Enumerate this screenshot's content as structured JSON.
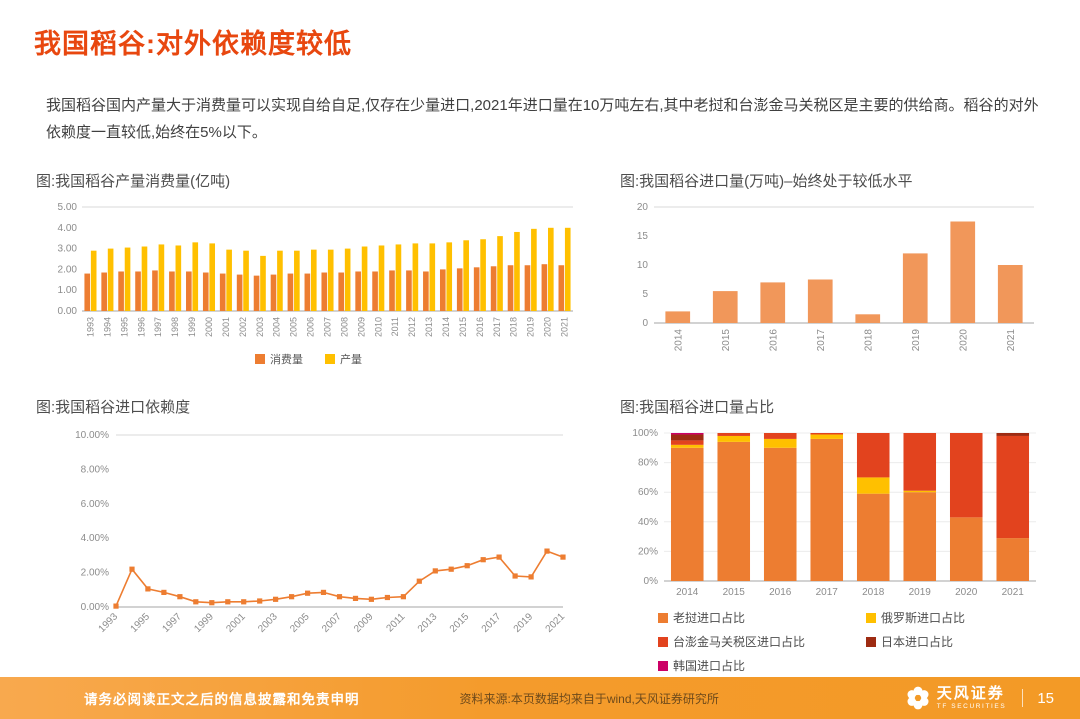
{
  "page": {
    "title": "我国稻谷:对外依赖度较低",
    "paragraph": "我国稻谷国内产量大于消费量可以实现自给自足,仅存在少量进口,2021年进口量在10万吨左右,其中老挝和台澎金马关税区是主要的供给商。稻谷的对外依赖度一直较低,始终在5%以下。",
    "page_number": "15"
  },
  "footer": {
    "disclaimer": "请务必阅读正文之后的信息披露和免责申明",
    "source": "资料来源:本页数据均来自于wind,天风证券研究所",
    "brand": "天风证券",
    "brand_en": "TF SECURITIES"
  },
  "colors": {
    "accent": "#E8470F",
    "footer_orange": "#F39A26",
    "consumption_orange": "#ED7D31",
    "production_yellow": "#FFC000",
    "import_bar": "#F1975A",
    "taiwan_red": "#E2431E",
    "japan_dark_red": "#9E2B12",
    "korea_magenta": "#CC0066"
  },
  "chart_data": [
    {
      "type": "bar",
      "title": "图:我国稻谷产量消费量(亿吨)",
      "categories": [
        "1993",
        "1994",
        "1995",
        "1996",
        "1997",
        "1998",
        "1999",
        "2000",
        "2001",
        "2002",
        "2003",
        "2004",
        "2005",
        "2006",
        "2007",
        "2008",
        "2009",
        "2010",
        "2011",
        "2012",
        "2013",
        "2014",
        "2015",
        "2016",
        "2017",
        "2018",
        "2019",
        "2020",
        "2021"
      ],
      "series": [
        {
          "name": "消费量",
          "color": "#ED7D31",
          "values": [
            1.8,
            1.85,
            1.9,
            1.9,
            1.95,
            1.9,
            1.9,
            1.85,
            1.8,
            1.75,
            1.7,
            1.75,
            1.8,
            1.8,
            1.85,
            1.85,
            1.9,
            1.9,
            1.95,
            1.95,
            1.9,
            2.0,
            2.05,
            2.1,
            2.15,
            2.2,
            2.2,
            2.25,
            2.2
          ]
        },
        {
          "name": "产量",
          "color": "#FFC000",
          "values": [
            2.9,
            3.0,
            3.05,
            3.1,
            3.2,
            3.15,
            3.3,
            3.25,
            2.95,
            2.9,
            2.65,
            2.9,
            2.9,
            2.95,
            2.95,
            3.0,
            3.1,
            3.15,
            3.2,
            3.25,
            3.25,
            3.3,
            3.4,
            3.45,
            3.6,
            3.8,
            3.95,
            4.0,
            4.0
          ]
        }
      ],
      "ylim": [
        0,
        5
      ],
      "yticks": [
        "0.00",
        "1.00",
        "2.00",
        "3.00",
        "4.00",
        "5.00"
      ],
      "legend_position": "bottom",
      "grid": false
    },
    {
      "type": "bar",
      "title": "图:我国稻谷进口量(万吨)–始终处于较低水平",
      "categories": [
        "2014",
        "2015",
        "2016",
        "2017",
        "2018",
        "2019",
        "2020",
        "2021"
      ],
      "values": [
        2,
        5.5,
        7,
        7.5,
        1.5,
        12,
        17.5,
        10
      ],
      "color": "#F1975A",
      "ylim": [
        0,
        20
      ],
      "yticks": [
        "0",
        "5",
        "10",
        "15",
        "20"
      ],
      "grid": false
    },
    {
      "type": "line",
      "title": "图:我国稻谷进口依赖度",
      "x": [
        "1993",
        "1994",
        "1995",
        "1996",
        "1997",
        "1998",
        "1999",
        "2000",
        "2001",
        "2002",
        "2003",
        "2004",
        "2005",
        "2006",
        "2007",
        "2008",
        "2009",
        "2010",
        "2011",
        "2012",
        "2013",
        "2014",
        "2015",
        "2016",
        "2017",
        "2018",
        "2019",
        "2020",
        "2021"
      ],
      "values": [
        0.05,
        2.2,
        1.05,
        0.85,
        0.6,
        0.3,
        0.25,
        0.3,
        0.3,
        0.35,
        0.45,
        0.6,
        0.8,
        0.85,
        0.6,
        0.5,
        0.45,
        0.55,
        0.6,
        1.5,
        2.1,
        2.2,
        2.4,
        2.75,
        2.9,
        1.8,
        1.75,
        3.25,
        2.9
      ],
      "marker": "square",
      "color": "#ED7D31",
      "ylim": [
        0,
        10
      ],
      "yticks": [
        "0.00%",
        "2.00%",
        "4.00%",
        "6.00%",
        "8.00%",
        "10.00%"
      ],
      "grid": false
    },
    {
      "type": "bar",
      "stacked": true,
      "percent": true,
      "title": "图:我国稻谷进口量占比",
      "categories": [
        "2014",
        "2015",
        "2016",
        "2017",
        "2018",
        "2019",
        "2020",
        "2021"
      ],
      "series": [
        {
          "name": "老挝进口占比",
          "color": "#ED7D31",
          "values": [
            90,
            94,
            90,
            96,
            59,
            60,
            43,
            29
          ]
        },
        {
          "name": "俄罗斯进口占比",
          "color": "#FFC000",
          "values": [
            2,
            4,
            6,
            3,
            11,
            1,
            0,
            0
          ]
        },
        {
          "name": "台澎金马关税区进口占比",
          "color": "#E2431E",
          "values": [
            3,
            2,
            4,
            1,
            30,
            39,
            57,
            69
          ]
        },
        {
          "name": "日本进口占比",
          "color": "#9E2B12",
          "values": [
            4,
            0,
            0,
            0,
            0,
            0,
            0,
            2
          ]
        },
        {
          "name": "韩国进口占比",
          "color": "#CC0066",
          "values": [
            1,
            0,
            0,
            0,
            0,
            0,
            0,
            0
          ]
        }
      ],
      "ylim": [
        0,
        100
      ],
      "yticks": [
        "0%",
        "20%",
        "40%",
        "60%",
        "80%",
        "100%"
      ],
      "legend_position": "bottom",
      "grid": true
    }
  ]
}
